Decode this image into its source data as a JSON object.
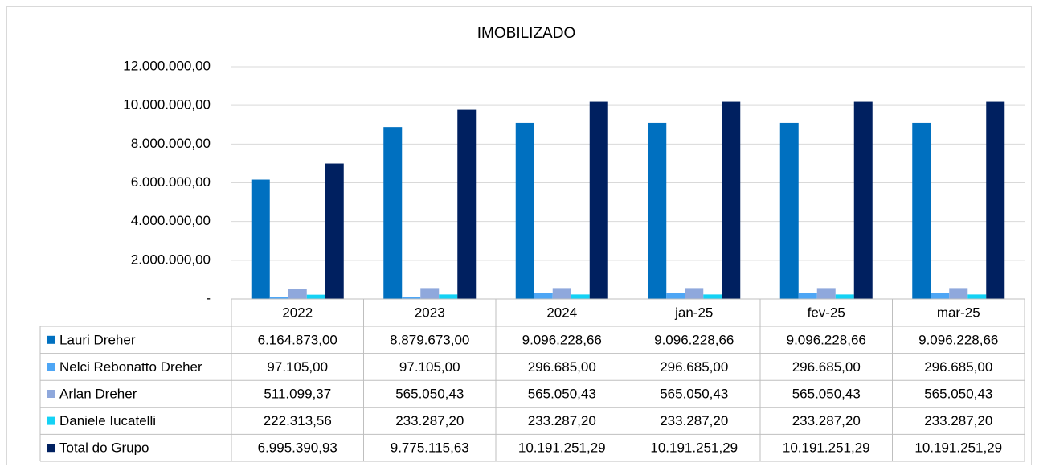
{
  "chart_data": {
    "type": "bar",
    "title": "IMOBILIZADO",
    "categories": [
      "2022",
      "2023",
      "2024",
      "jan-25",
      "fev-25",
      "mar-25"
    ],
    "series": [
      {
        "name": "Lauri Dreher",
        "color": "#0070c0",
        "values": [
          6164873.0,
          8879673.0,
          9096228.66,
          9096228.66,
          9096228.66,
          9096228.66
        ],
        "value_labels": [
          "6.164.873,00",
          "8.879.673,00",
          "9.096.228,66",
          "9.096.228,66",
          "9.096.228,66",
          "9.096.228,66"
        ]
      },
      {
        "name": "Nelci Rebonatto Dreher",
        "color": "#4ea6f5",
        "values": [
          97105.0,
          97105.0,
          296685.0,
          296685.0,
          296685.0,
          296685.0
        ],
        "value_labels": [
          "97.105,00",
          "97.105,00",
          "296.685,00",
          "296.685,00",
          "296.685,00",
          "296.685,00"
        ]
      },
      {
        "name": "Arlan Dreher",
        "color": "#8fa8dc",
        "values": [
          511099.37,
          565050.43,
          565050.43,
          565050.43,
          565050.43,
          565050.43
        ],
        "value_labels": [
          "511.099,37",
          "565.050,43",
          "565.050,43",
          "565.050,43",
          "565.050,43",
          "565.050,43"
        ]
      },
      {
        "name": "Daniele Iucatelli",
        "color": "#14d2f5",
        "values": [
          222313.56,
          233287.2,
          233287.2,
          233287.2,
          233287.2,
          233287.2
        ],
        "value_labels": [
          "222.313,56",
          "233.287,20",
          "233.287,20",
          "233.287,20",
          "233.287,20",
          "233.287,20"
        ]
      },
      {
        "name": "Total do Grupo",
        "color": "#002060",
        "values": [
          6995390.93,
          9775115.63,
          10191251.29,
          10191251.29,
          10191251.29,
          10191251.29
        ],
        "value_labels": [
          "6.995.390,93",
          "9.775.115,63",
          "10.191.251,29",
          "10.191.251,29",
          "10.191.251,29",
          "10.191.251,29"
        ]
      }
    ],
    "ylim": [
      0,
      12000000
    ],
    "yticks": [
      {
        "value": 0,
        "label": "-"
      },
      {
        "value": 2000000,
        "label": "2.000.000,00"
      },
      {
        "value": 4000000,
        "label": "4.000.000,00"
      },
      {
        "value": 6000000,
        "label": "6.000.000,00"
      },
      {
        "value": 8000000,
        "label": "8.000.000,00"
      },
      {
        "value": 10000000,
        "label": "10.000.000,00"
      },
      {
        "value": 12000000,
        "label": "12.000.000,00"
      }
    ],
    "grid": true
  }
}
